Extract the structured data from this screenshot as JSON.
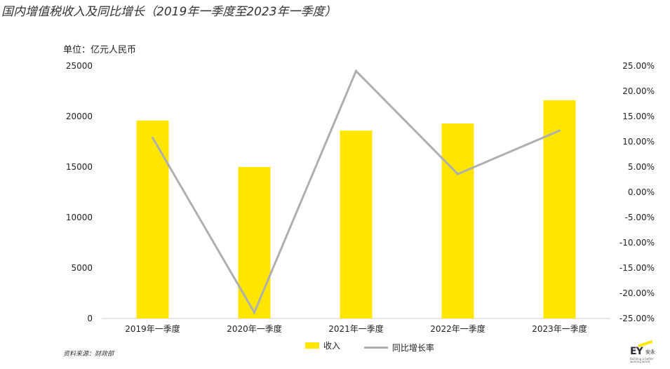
{
  "title": "国内增值税收入及同比增长（2019年一季度至2023年一季度）",
  "unit_label": "单位：亿元人民币",
  "source": "资料来源：财政部",
  "logo": {
    "text": "EY",
    "cn": "安永",
    "tagline": "Building a better working world"
  },
  "colors": {
    "bar": "#FFE600",
    "line": "#AFAFAF"
  },
  "chart_data": {
    "type": "bar",
    "title": "国内增值税收入及同比增长（2019年一季度至2023年一季度）",
    "categories": [
      "2019年一季度",
      "2020年一季度",
      "2021年一季度",
      "2022年一季度",
      "2023年一季度"
    ],
    "series": [
      {
        "name": "收入",
        "type": "bar",
        "axis": "left",
        "values": [
          19600,
          15000,
          18600,
          19300,
          21600
        ]
      },
      {
        "name": "同比增长率",
        "type": "line",
        "axis": "right",
        "values": [
          10.8,
          -23.8,
          24.0,
          3.6,
          12.2
        ]
      }
    ],
    "y_left": {
      "min": 0,
      "max": 25000,
      "ticks": [
        "0",
        "5000",
        "10000",
        "15000",
        "20000",
        "25000"
      ]
    },
    "y_right": {
      "min": -25,
      "max": 25,
      "ticks": [
        "-25.00%",
        "-20.00%",
        "-15.00%",
        "-10.00%",
        "-5.00%",
        "0.00%",
        "5.00%",
        "10.00%",
        "15.00%",
        "20.00%",
        "25.00%"
      ]
    },
    "grid": false,
    "legend": "bottom"
  }
}
